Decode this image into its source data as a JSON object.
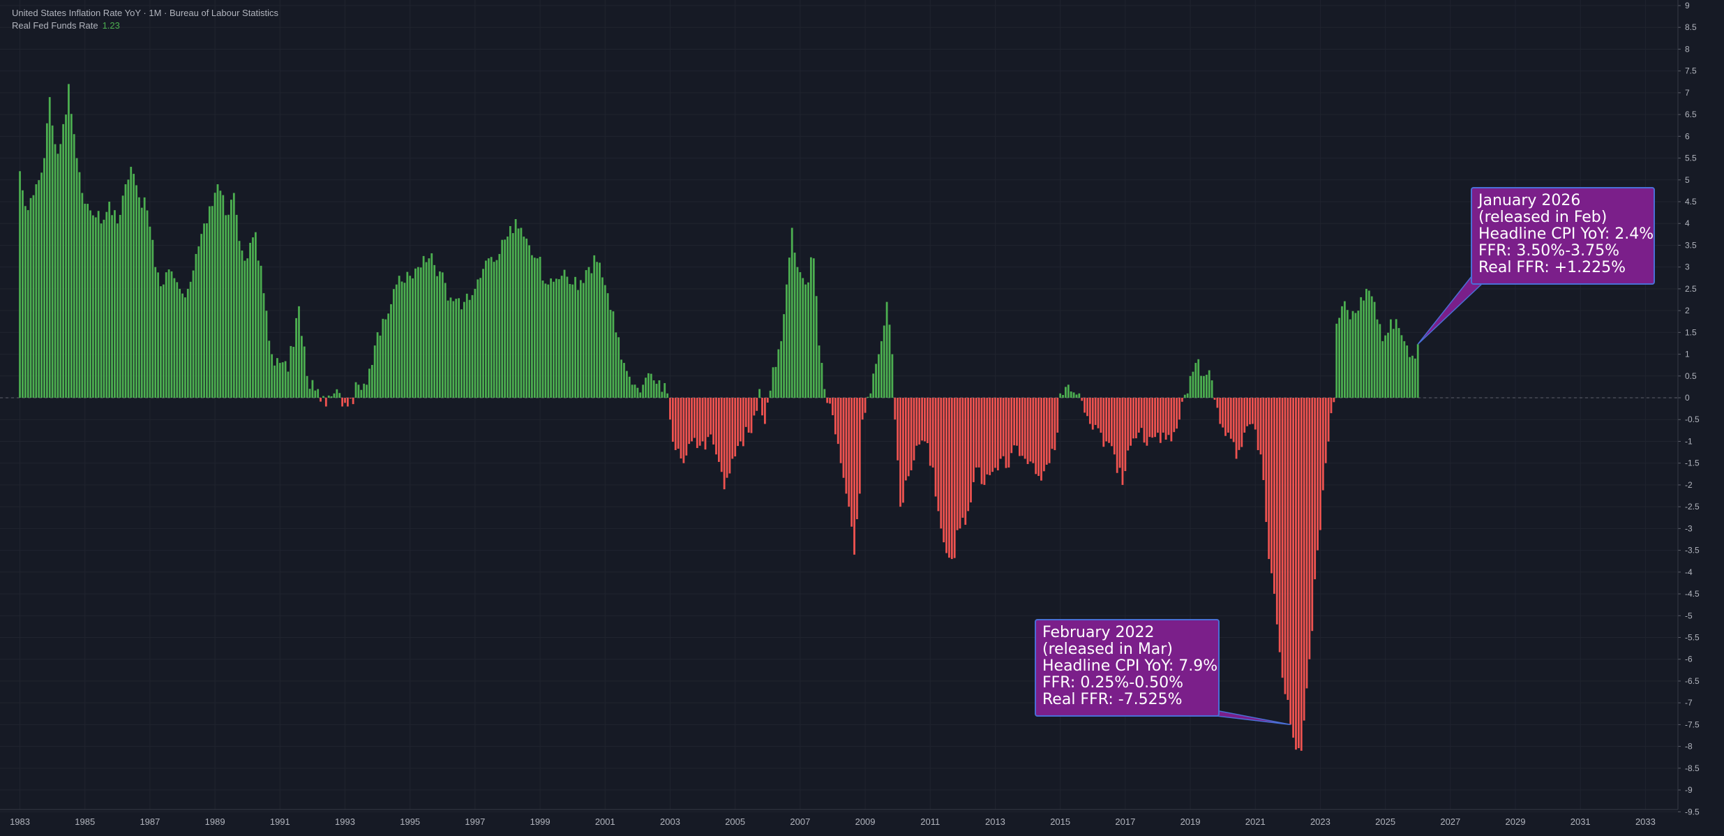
{
  "legend": {
    "series_title": "United States Inflation Rate YoY · 1M · Bureau of Labour Statistics",
    "indicator_label": "Real Fed Funds Rate",
    "indicator_value": "1.23"
  },
  "callouts": [
    {
      "lines": [
        "January 2026",
        "(released in Feb)",
        "Headline CPI YoY: 2.4%",
        "FFR: 3.50%-3.75%",
        "Real FFR: +1.225%"
      ]
    },
    {
      "lines": [
        "February 2022",
        "(released in Mar)",
        "Headline CPI YoY: 7.9%",
        "FFR: 0.25%-0.50%",
        "Real FFR: -7.525%"
      ]
    }
  ],
  "colors": {
    "background": "#161a25",
    "positive": "#4caf50",
    "negative": "#ef5350",
    "callout_fill": "#7b1f8a",
    "callout_border": "#4a6fd6"
  },
  "chart_data": {
    "type": "bar",
    "title": "United States Inflation Rate YoY · 1M · Bureau of Labour Statistics",
    "series": [
      {
        "name": "Real Fed Funds Rate",
        "x_start": "1983-01",
        "frequency": "monthly",
        "x_end": "2026-01",
        "anchors": [
          [
            "1983-01",
            5.2
          ],
          [
            "1983-03",
            4.4
          ],
          [
            "1983-07",
            4.9
          ],
          [
            "1983-10",
            5.5
          ],
          [
            "1983-12",
            6.9
          ],
          [
            "1984-03",
            5.6
          ],
          [
            "1984-06",
            6.5
          ],
          [
            "1984-07",
            7.2
          ],
          [
            "1984-10",
            5.5
          ],
          [
            "1984-12",
            4.7
          ],
          [
            "1985-03",
            4.3
          ],
          [
            "1985-07",
            4.0
          ],
          [
            "1985-10",
            4.5
          ],
          [
            "1986-01",
            4.0
          ],
          [
            "1986-04",
            4.9
          ],
          [
            "1986-06",
            5.3
          ],
          [
            "1986-09",
            4.6
          ],
          [
            "1986-12",
            4.3
          ],
          [
            "1987-03",
            3.0
          ],
          [
            "1987-06",
            2.6
          ],
          [
            "1987-09",
            2.9
          ],
          [
            "1987-12",
            2.5
          ],
          [
            "1988-03",
            2.5
          ],
          [
            "1988-06",
            3.3
          ],
          [
            "1988-09",
            4.0
          ],
          [
            "1988-12",
            4.4
          ],
          [
            "1989-02",
            4.9
          ],
          [
            "1989-06",
            4.2
          ],
          [
            "1989-08",
            4.7
          ],
          [
            "1989-10",
            3.6
          ],
          [
            "1990-01",
            3.2
          ],
          [
            "1990-04",
            3.8
          ],
          [
            "1990-07",
            2.4
          ],
          [
            "1990-10",
            1.0
          ],
          [
            "1991-01",
            0.8
          ],
          [
            "1991-04",
            0.6
          ],
          [
            "1991-08",
            2.1
          ],
          [
            "1991-11",
            0.5
          ],
          [
            "1992-03",
            0.2
          ],
          [
            "1992-06",
            -0.2
          ],
          [
            "1992-09",
            0.1
          ],
          [
            "1992-12",
            -0.2
          ],
          [
            "1993-02",
            -0.2
          ],
          [
            "1993-06",
            0.3
          ],
          [
            "1993-09",
            0.3
          ],
          [
            "1993-12",
            1.2
          ],
          [
            "1994-04",
            1.8
          ],
          [
            "1994-09",
            2.8
          ],
          [
            "1995-01",
            2.8
          ],
          [
            "1995-04",
            3.0
          ],
          [
            "1995-08",
            3.2
          ],
          [
            "1995-12",
            2.9
          ],
          [
            "1996-04",
            2.3
          ],
          [
            "1996-09",
            2.2
          ],
          [
            "1997-01",
            2.5
          ],
          [
            "1997-06",
            3.2
          ],
          [
            "1997-10",
            3.3
          ],
          [
            "1998-01",
            3.7
          ],
          [
            "1998-04",
            4.1
          ],
          [
            "1998-09",
            3.5
          ],
          [
            "1998-12",
            3.2
          ],
          [
            "1999-04",
            2.6
          ],
          [
            "1999-09",
            2.8
          ],
          [
            "2000-01",
            2.6
          ],
          [
            "2000-04",
            2.7
          ],
          [
            "2000-07",
            3.0
          ],
          [
            "2000-11",
            3.1
          ],
          [
            "2001-02",
            2.4
          ],
          [
            "2001-05",
            1.5
          ],
          [
            "2001-08",
            0.8
          ],
          [
            "2001-11",
            0.3
          ],
          [
            "2002-03",
            0.3
          ],
          [
            "2002-07",
            0.4
          ],
          [
            "2002-12",
            0.1
          ],
          [
            "2003-01",
            -0.5
          ],
          [
            "2003-03",
            -1.2
          ],
          [
            "2003-06",
            -1.5
          ],
          [
            "2003-09",
            -1.0
          ],
          [
            "2003-12",
            -1.1
          ],
          [
            "2004-03",
            -0.9
          ],
          [
            "2004-06",
            -1.3
          ],
          [
            "2004-09",
            -2.1
          ],
          [
            "2004-12",
            -1.4
          ],
          [
            "2005-03",
            -1.0
          ],
          [
            "2005-06",
            -0.8
          ],
          [
            "2005-09",
            -0.3
          ],
          [
            "2005-10",
            0.2
          ],
          [
            "2005-12",
            -0.6
          ],
          [
            "2006-03",
            0.7
          ],
          [
            "2006-06",
            1.3
          ],
          [
            "2006-08",
            2.6
          ],
          [
            "2006-10",
            3.9
          ],
          [
            "2006-12",
            3.0
          ],
          [
            "2007-03",
            2.6
          ],
          [
            "2007-06",
            3.2
          ],
          [
            "2007-08",
            1.2
          ],
          [
            "2007-10",
            0.2
          ],
          [
            "2008-01",
            -0.4
          ],
          [
            "2008-04",
            -1.5
          ],
          [
            "2008-07",
            -2.5
          ],
          [
            "2008-09",
            -3.6
          ],
          [
            "2008-11",
            -2.2
          ],
          [
            "2008-12",
            -0.5
          ],
          [
            "2009-03",
            0.1
          ],
          [
            "2009-06",
            1.0
          ],
          [
            "2009-09",
            2.2
          ],
          [
            "2009-11",
            1.0
          ],
          [
            "2009-12",
            -0.5
          ],
          [
            "2010-02",
            -2.5
          ],
          [
            "2010-05",
            -1.8
          ],
          [
            "2010-08",
            -1.1
          ],
          [
            "2010-11",
            -1.0
          ],
          [
            "2011-02",
            -1.6
          ],
          [
            "2011-05",
            -3.0
          ],
          [
            "2011-09",
            -3.7
          ],
          [
            "2011-12",
            -3.0
          ],
          [
            "2012-03",
            -2.6
          ],
          [
            "2012-06",
            -1.6
          ],
          [
            "2012-09",
            -2.0
          ],
          [
            "2012-12",
            -1.7
          ],
          [
            "2013-03",
            -1.4
          ],
          [
            "2013-06",
            -1.6
          ],
          [
            "2013-09",
            -1.1
          ],
          [
            "2013-12",
            -1.4
          ],
          [
            "2014-03",
            -1.5
          ],
          [
            "2014-06",
            -1.9
          ],
          [
            "2014-09",
            -1.5
          ],
          [
            "2014-12",
            -0.8
          ],
          [
            "2015-01",
            0.1
          ],
          [
            "2015-04",
            0.3
          ],
          [
            "2015-08",
            0.1
          ],
          [
            "2015-12",
            -0.6
          ],
          [
            "2016-03",
            -0.7
          ],
          [
            "2016-06",
            -1.0
          ],
          [
            "2016-09",
            -1.3
          ],
          [
            "2016-12",
            -2.0
          ],
          [
            "2017-03",
            -1.1
          ],
          [
            "2017-06",
            -0.8
          ],
          [
            "2017-09",
            -1.1
          ],
          [
            "2017-12",
            -0.9
          ],
          [
            "2018-03",
            -0.8
          ],
          [
            "2018-06",
            -1.0
          ],
          [
            "2018-09",
            -0.5
          ],
          [
            "2018-12",
            0.1
          ],
          [
            "2019-01",
            0.5
          ],
          [
            "2019-03",
            0.8
          ],
          [
            "2019-06",
            0.5
          ],
          [
            "2019-09",
            0.4
          ],
          [
            "2019-12",
            -0.6
          ],
          [
            "2020-03",
            -0.8
          ],
          [
            "2020-06",
            -1.4
          ],
          [
            "2020-09",
            -0.8
          ],
          [
            "2020-12",
            -0.6
          ],
          [
            "2021-03",
            -1.3
          ],
          [
            "2021-06",
            -3.7
          ],
          [
            "2021-09",
            -5.2
          ],
          [
            "2021-12",
            -6.8
          ],
          [
            "2022-02",
            -7.5
          ],
          [
            "2022-03",
            -7.8
          ],
          [
            "2022-06",
            -8.1
          ],
          [
            "2022-09",
            -6.0
          ],
          [
            "2022-12",
            -3.5
          ],
          [
            "2023-03",
            -1.5
          ],
          [
            "2023-06",
            -0.1
          ],
          [
            "2023-07",
            1.7
          ],
          [
            "2023-09",
            2.1
          ],
          [
            "2023-12",
            1.8
          ],
          [
            "2024-03",
            2.0
          ],
          [
            "2024-06",
            2.5
          ],
          [
            "2024-09",
            2.2
          ],
          [
            "2024-12",
            1.3
          ],
          [
            "2025-03",
            1.8
          ],
          [
            "2025-06",
            1.6
          ],
          [
            "2025-09",
            1.2
          ],
          [
            "2025-12",
            0.9
          ],
          [
            "2026-01",
            1.23
          ]
        ]
      }
    ],
    "xlabel": "",
    "ylabel": "",
    "xlim": [
      "1982-09",
      "2034-01"
    ],
    "ylim": [
      -9.8,
      9
    ],
    "x_ticks": [
      "1983",
      "1985",
      "1987",
      "1989",
      "1991",
      "1993",
      "1995",
      "1997",
      "1999",
      "2001",
      "2003",
      "2005",
      "2007",
      "2009",
      "2011",
      "2013",
      "2015",
      "2017",
      "2019",
      "2021",
      "2023",
      "2025",
      "2027",
      "2029",
      "2031",
      "2033"
    ],
    "y_ticks": [
      "9",
      "8.5",
      "8",
      "7.5",
      "7",
      "6.5",
      "6",
      "5.5",
      "5",
      "4.5",
      "4",
      "3.5",
      "3",
      "2.5",
      "2",
      "1.5",
      "1",
      "0.5",
      "0",
      "-0.5",
      "-1",
      "-1.5",
      "-2",
      "-2.5",
      "-3",
      "-3.5",
      "-4",
      "-4.5",
      "-5",
      "-5.5",
      "-6",
      "-6.5",
      "-7",
      "-7.5",
      "-8",
      "-8.5",
      "-9",
      "-9.5"
    ],
    "grid": true,
    "legend": "top-left"
  }
}
